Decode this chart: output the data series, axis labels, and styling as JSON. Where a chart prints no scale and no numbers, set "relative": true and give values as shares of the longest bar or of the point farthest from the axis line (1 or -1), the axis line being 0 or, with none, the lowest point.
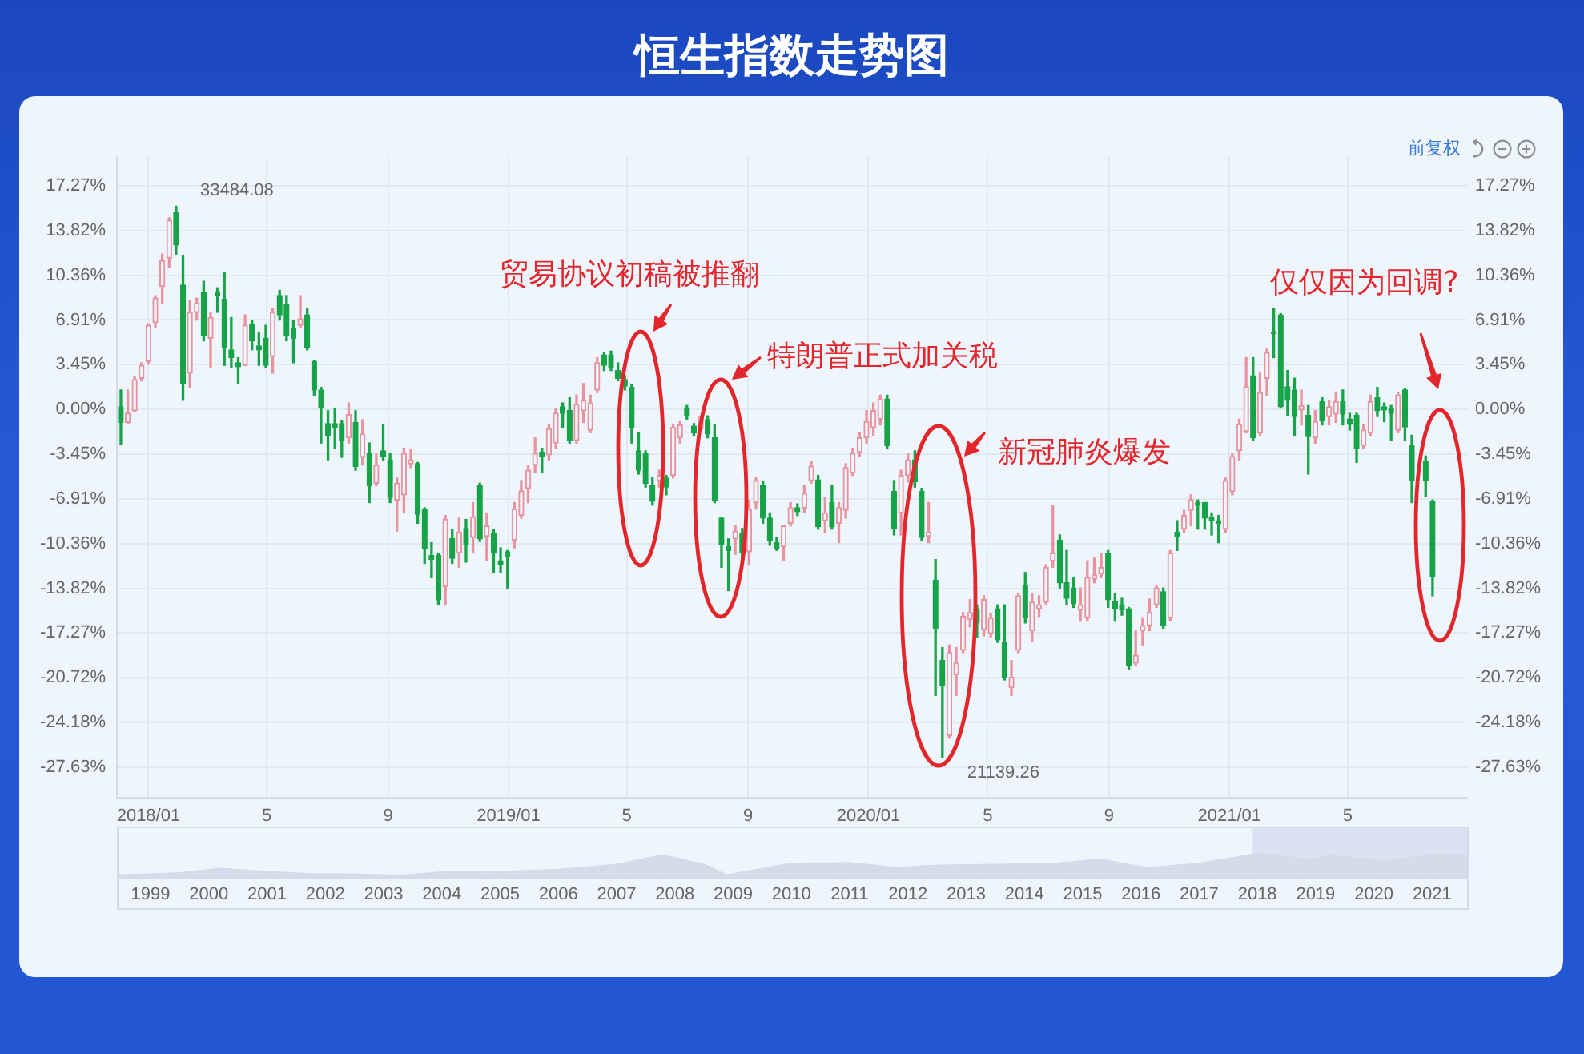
{
  "chart_data": [
    {
      "type": "candlestick",
      "title": "恒生指数走势图",
      "x": [
        "2017-12-04",
        "2017-12-11",
        "2017-12-18",
        "2017-12-25",
        "2018-01-01",
        "2018-01-08",
        "2018-01-15",
        "2018-01-22",
        "2018-01-29",
        "2018-02-05",
        "2018-02-12",
        "2018-02-19",
        "2018-02-26",
        "2018-03-05",
        "2018-03-12",
        "2018-03-19",
        "2018-03-26",
        "2018-04-02",
        "2018-04-09",
        "2018-04-16",
        "2018-04-23",
        "2018-04-30",
        "2018-05-07",
        "2018-05-14",
        "2018-05-21",
        "2018-05-28",
        "2018-06-04",
        "2018-06-11",
        "2018-06-18",
        "2018-06-25",
        "2018-07-02",
        "2018-07-09",
        "2018-07-16",
        "2018-07-23",
        "2018-07-30",
        "2018-08-06",
        "2018-08-13",
        "2018-08-20",
        "2018-08-27",
        "2018-09-03",
        "2018-09-10",
        "2018-09-17",
        "2018-09-24",
        "2018-10-01",
        "2018-10-08",
        "2018-10-15",
        "2018-10-22",
        "2018-10-29",
        "2018-11-05",
        "2018-11-12",
        "2018-11-19",
        "2018-11-26",
        "2018-12-03",
        "2018-12-10",
        "2018-12-17",
        "2018-12-24",
        "2018-12-31",
        "2019-01-07",
        "2019-01-14",
        "2019-01-21",
        "2019-01-28",
        "2019-02-04",
        "2019-02-11",
        "2019-02-18",
        "2019-02-25",
        "2019-03-04",
        "2019-03-11",
        "2019-03-18",
        "2019-03-25",
        "2019-04-01",
        "2019-04-08",
        "2019-04-15",
        "2019-04-22",
        "2019-04-29",
        "2019-05-06",
        "2019-05-13",
        "2019-05-20",
        "2019-05-27",
        "2019-06-03",
        "2019-06-10",
        "2019-06-17",
        "2019-06-24",
        "2019-07-01",
        "2019-07-08",
        "2019-07-15",
        "2019-07-22",
        "2019-07-29",
        "2019-08-05",
        "2019-08-12",
        "2019-08-19",
        "2019-08-26",
        "2019-09-02",
        "2019-09-09",
        "2019-09-16",
        "2019-09-23",
        "2019-09-30",
        "2019-10-07",
        "2019-10-14",
        "2019-10-21",
        "2019-10-28",
        "2019-11-04",
        "2019-11-11",
        "2019-11-18",
        "2019-11-25",
        "2019-12-02",
        "2019-12-09",
        "2019-12-16",
        "2019-12-23",
        "2019-12-30",
        "2020-01-06",
        "2020-01-13",
        "2020-01-20",
        "2020-01-27",
        "2020-02-03",
        "2020-02-10",
        "2020-02-17",
        "2020-02-24",
        "2020-03-02",
        "2020-03-09",
        "2020-03-16",
        "2020-03-23",
        "2020-03-30",
        "2020-04-06",
        "2020-04-13",
        "2020-04-20",
        "2020-04-27",
        "2020-05-04",
        "2020-05-11",
        "2020-05-18",
        "2020-05-25",
        "2020-06-01",
        "2020-06-08",
        "2020-06-15",
        "2020-06-22",
        "2020-06-29",
        "2020-07-06",
        "2020-07-13",
        "2020-07-20",
        "2020-07-27",
        "2020-08-03",
        "2020-08-10",
        "2020-08-17",
        "2020-08-24",
        "2020-08-31",
        "2020-09-07",
        "2020-09-14",
        "2020-09-21",
        "2020-09-28",
        "2020-10-05",
        "2020-10-12",
        "2020-10-19",
        "2020-10-26",
        "2020-11-02",
        "2020-11-09",
        "2020-11-16",
        "2020-11-23",
        "2020-11-30",
        "2020-12-07",
        "2020-12-14",
        "2020-12-21",
        "2020-12-28",
        "2021-01-04",
        "2021-01-11",
        "2021-01-18",
        "2021-01-25",
        "2021-02-01",
        "2021-02-08",
        "2021-02-15",
        "2021-02-22",
        "2021-03-01",
        "2021-03-08",
        "2021-03-15",
        "2021-03-22",
        "2021-03-29",
        "2021-04-05",
        "2021-04-12",
        "2021-04-19",
        "2021-04-26",
        "2021-05-03",
        "2021-05-10",
        "2021-05-17",
        "2021-05-24",
        "2021-05-31",
        "2021-06-07",
        "2021-06-14",
        "2021-06-21",
        "2021-06-28",
        "2021-07-05",
        "2021-07-19",
        "2021-07-26"
      ],
      "ohlc": [
        [
          0.2,
          1.5,
          -2.7,
          -1.0
        ],
        [
          -1.0,
          1.5,
          -1.1,
          -0.3
        ],
        [
          -0.1,
          2.5,
          -0.2,
          2.3
        ],
        [
          2.4,
          3.6,
          2.2,
          3.4
        ],
        [
          3.7,
          6.6,
          3.5,
          6.5
        ],
        [
          6.7,
          8.8,
          6.3,
          8.6
        ],
        [
          9.5,
          12.0,
          8.2,
          11.5
        ],
        [
          11.7,
          14.8,
          11.0,
          14.6
        ],
        [
          15.2,
          15.7,
          12.0,
          12.7
        ],
        [
          9.6,
          11.9,
          0.7,
          2.0
        ],
        [
          2.8,
          8.4,
          1.7,
          7.5
        ],
        [
          7.5,
          8.6,
          6.9,
          8.2
        ],
        [
          9.0,
          9.9,
          5.3,
          5.7
        ],
        [
          5.5,
          7.5,
          3.2,
          7.1
        ],
        [
          9.1,
          9.4,
          7.5,
          8.8
        ],
        [
          8.5,
          10.6,
          3.4,
          4.8
        ],
        [
          4.6,
          7.1,
          3.2,
          4.0
        ],
        [
          3.6,
          4.0,
          2.0,
          3.3
        ],
        [
          3.4,
          7.3,
          3.4,
          6.5
        ],
        [
          6.6,
          6.9,
          4.6,
          5.3
        ],
        [
          4.9,
          5.9,
          3.4,
          4.6
        ],
        [
          5.5,
          6.5,
          3.2,
          3.4
        ],
        [
          4.1,
          7.8,
          2.8,
          7.5
        ],
        [
          8.8,
          9.2,
          6.9,
          7.3
        ],
        [
          8.1,
          8.8,
          5.3,
          5.7
        ],
        [
          6.3,
          6.9,
          3.6,
          5.5
        ],
        [
          6.5,
          8.8,
          6.3,
          7.0
        ],
        [
          7.3,
          7.8,
          4.6,
          4.8
        ],
        [
          3.7,
          3.8,
          1.1,
          1.5
        ],
        [
          1.5,
          1.7,
          -2.6,
          0.1
        ],
        [
          -1.1,
          -0.1,
          -3.9,
          -2.0
        ],
        [
          -1.1,
          0.1,
          -3.0,
          -1.4
        ],
        [
          -1.1,
          -0.9,
          -3.7,
          -2.4
        ],
        [
          -2.2,
          0.5,
          -2.6,
          -0.4
        ],
        [
          -1.0,
          -0.1,
          -4.7,
          -4.4
        ],
        [
          -3.7,
          -0.8,
          -4.3,
          -1.9
        ],
        [
          -3.4,
          -2.6,
          -7.2,
          -5.9
        ],
        [
          -5.7,
          -3.4,
          -5.9,
          -4.3
        ],
        [
          -3.2,
          -1.2,
          -3.9,
          -3.6
        ],
        [
          -3.9,
          -3.4,
          -7.2,
          -6.8
        ],
        [
          -7.0,
          -5.3,
          -9.4,
          -5.7
        ],
        [
          -6.6,
          -3.0,
          -8.0,
          -3.4
        ],
        [
          -4.2,
          -3.1,
          -4.5,
          -3.9
        ],
        [
          -4.2,
          -4.1,
          -8.8,
          -8.1
        ],
        [
          -7.7,
          -7.6,
          -11.9,
          -10.8
        ],
        [
          -11.3,
          -10.3,
          -13.0,
          -11.6
        ],
        [
          -11.3,
          -11.1,
          -15.1,
          -14.7
        ],
        [
          -13.7,
          -8.2,
          -15.1,
          -8.5
        ],
        [
          -10.0,
          -9.3,
          -11.9,
          -11.5
        ],
        [
          -11.1,
          -8.4,
          -12.2,
          -9.5
        ],
        [
          -9.2,
          -8.5,
          -11.8,
          -10.4
        ],
        [
          -9.9,
          -7.2,
          -11.1,
          -8.3
        ],
        [
          -5.9,
          -5.7,
          -10.2,
          -10.0
        ],
        [
          -9.8,
          -8.0,
          -11.7,
          -9.0
        ],
        [
          -9.6,
          -9.3,
          -12.6,
          -11.1
        ],
        [
          -11.7,
          -10.7,
          -12.6,
          -12.0
        ],
        [
          -11.0,
          -10.9,
          -13.8,
          -11.4
        ],
        [
          -10.1,
          -7.2,
          -10.7,
          -7.7
        ],
        [
          -8.2,
          -5.5,
          -8.4,
          -6.3
        ],
        [
          -6.1,
          -4.3,
          -7.2,
          -4.7
        ],
        [
          -4.3,
          -2.2,
          -4.9,
          -3.4
        ],
        [
          -3.3,
          -3.0,
          -4.9,
          -3.6
        ],
        [
          -3.5,
          -1.2,
          -3.9,
          -1.5
        ],
        [
          -2.6,
          0.1,
          -3.0,
          -0.3
        ],
        [
          0.2,
          0.5,
          -1.4,
          -0.3
        ],
        [
          -0.1,
          0.9,
          -2.6,
          -2.4
        ],
        [
          -2.4,
          1.1,
          -2.6,
          0.4
        ],
        [
          -0.1,
          2.0,
          -1.0,
          0.7
        ],
        [
          -1.6,
          1.1,
          -1.8,
          0.5
        ],
        [
          1.5,
          4.0,
          1.3,
          3.6
        ],
        [
          4.2,
          4.4,
          3.0,
          3.4
        ],
        [
          4.2,
          4.5,
          3.0,
          3.2
        ],
        [
          3.0,
          3.6,
          2.2,
          2.4
        ],
        [
          2.3,
          2.6,
          1.5,
          1.8
        ],
        [
          1.7,
          1.9,
          -2.6,
          -1.4
        ],
        [
          -3.2,
          -1.8,
          -5.0,
          -4.7
        ],
        [
          -3.4,
          -3.2,
          -6.0,
          -5.7
        ],
        [
          -5.9,
          -5.3,
          -7.4,
          -7.1
        ],
        [
          -5.5,
          -4.7,
          -6.0,
          -5.1
        ],
        [
          -5.3,
          -5.1,
          -6.6,
          -6.0
        ],
        [
          -5.1,
          -1.2,
          -5.3,
          -1.4
        ],
        [
          -2.2,
          -0.95,
          -2.6,
          -1.2
        ],
        [
          0.1,
          0.3,
          -0.75,
          -0.45
        ],
        [
          -1.3,
          -1.1,
          -2.0,
          -1.8
        ],
        [
          -1.5,
          -0.5,
          -1.7,
          -0.6
        ],
        [
          -0.8,
          -0.5,
          -2.2,
          -1.9
        ],
        [
          -2.2,
          -1.2,
          -7.2,
          -7.0
        ],
        [
          -8.4,
          -8.4,
          -12.2,
          -10.4
        ],
        [
          -10.6,
          -10.0,
          -14.0,
          -10.9
        ],
        [
          -10.0,
          -9.0,
          -11.2,
          -9.4
        ],
        [
          -9.6,
          -9.2,
          -11.6,
          -11.1
        ],
        [
          -11.0,
          -7.0,
          -12.0,
          -7.7
        ],
        [
          -7.2,
          -5.3,
          -7.7,
          -5.5
        ],
        [
          -5.9,
          -5.6,
          -8.8,
          -8.4
        ],
        [
          -8.4,
          -8.0,
          -10.5,
          -10.1
        ],
        [
          -10.3,
          -9.9,
          -10.9,
          -10.8
        ],
        [
          -10.6,
          -9.0,
          -11.7,
          -9.0
        ],
        [
          -8.8,
          -7.2,
          -9.0,
          -7.6
        ],
        [
          -7.6,
          -7.3,
          -8.2,
          -7.9
        ],
        [
          -7.6,
          -5.9,
          -8.0,
          -6.5
        ],
        [
          -5.5,
          -4.0,
          -5.7,
          -4.4
        ],
        [
          -5.45,
          -5.1,
          -9.25,
          -9.05
        ],
        [
          -8.6,
          -6.8,
          -9.5,
          -8.0
        ],
        [
          -7.2,
          -5.9,
          -9.25,
          -9.05
        ],
        [
          -8.8,
          -7.2,
          -10.3,
          -7.6
        ],
        [
          -7.8,
          -4.2,
          -8.4,
          -4.5
        ],
        [
          -4.9,
          -3.0,
          -5.1,
          -3.4
        ],
        [
          -3.3,
          -1.8,
          -3.6,
          -2.2
        ],
        [
          -2.2,
          -0.1,
          -2.6,
          -0.95
        ],
        [
          -1.4,
          0.5,
          -2.0,
          -0.1
        ],
        [
          -0.75,
          1.1,
          -1.2,
          0.8
        ],
        [
          0.8,
          1.1,
          -3.0,
          -2.8
        ],
        [
          -6.35,
          -5.5,
          -9.7,
          -9.25
        ],
        [
          -8.0,
          -4.7,
          -9.7,
          -5.1
        ],
        [
          -5.1,
          -3.4,
          -5.6,
          -3.9
        ],
        [
          -3.9,
          -3.2,
          -6.0,
          -5.6
        ],
        [
          -6.35,
          -6.1,
          -10.1,
          -9.9
        ],
        [
          -9.8,
          -7.2,
          -10.3,
          -9.5
        ],
        [
          -13.2,
          -11.6,
          -22.1,
          -16.9
        ],
        [
          -19.4,
          -18.4,
          -26.9,
          -21.3
        ],
        [
          -25.2,
          -18.2,
          -25.4,
          -18.8
        ],
        [
          -20.5,
          -18.4,
          -22.1,
          -19.6
        ],
        [
          -18.6,
          -15.7,
          -18.8,
          -16.0
        ],
        [
          -16.2,
          -14.7,
          -16.8,
          -15.7
        ],
        [
          -15.4,
          -15.1,
          -17.6,
          -16.5
        ],
        [
          -17.0,
          -14.4,
          -17.5,
          -14.7
        ],
        [
          -17.3,
          -15.8,
          -17.6,
          -16.1
        ],
        [
          -15.4,
          -15.1,
          -18.0,
          -17.8
        ],
        [
          -18.0,
          -15.1,
          -20.9,
          -20.7
        ],
        [
          -21.5,
          -19.4,
          -22.1,
          -20.7
        ],
        [
          -18.6,
          -14.2,
          -18.8,
          -14.4
        ],
        [
          -13.6,
          -12.6,
          -16.5,
          -16.1
        ],
        [
          -17.1,
          -14.2,
          -17.9,
          -14.9
        ],
        [
          -15.4,
          -14.4,
          -16.0,
          -15.1
        ],
        [
          -14.9,
          -12.0,
          -15.1,
          -12.2
        ],
        [
          -11.7,
          -7.4,
          -12.2,
          -11.1
        ],
        [
          -10.1,
          -9.7,
          -13.8,
          -13.4
        ],
        [
          -13.4,
          -10.9,
          -15.1,
          -14.6
        ],
        [
          -13.8,
          -13.0,
          -15.3,
          -15.0
        ],
        [
          -15.5,
          -13.8,
          -16.3,
          -15.1
        ],
        [
          -16.1,
          -11.7,
          -16.3,
          -13.0
        ],
        [
          -13.1,
          -11.5,
          -13.4,
          -12.8
        ],
        [
          -12.7,
          -11.1,
          -13.0,
          -12.2
        ],
        [
          -11.1,
          -10.9,
          -15.3,
          -14.7
        ],
        [
          -14.85,
          -14.2,
          -16.3,
          -15.4
        ],
        [
          -15.1,
          -14.6,
          -15.9,
          -15.5
        ],
        [
          -15.4,
          -15.3,
          -20.1,
          -19.8
        ],
        [
          -19.6,
          -17.1,
          -19.8,
          -19.0
        ],
        [
          -17.1,
          -16.1,
          -18.2,
          -16.7
        ],
        [
          -16.7,
          -14.65,
          -17.1,
          -15.7
        ],
        [
          -15.1,
          -13.6,
          -15.3,
          -13.8
        ],
        [
          -14.1,
          -13.8,
          -16.9,
          -16.7
        ],
        [
          -16.1,
          -10.9,
          -16.3,
          -11.1
        ],
        [
          -9.5,
          -8.6,
          -10.9,
          -9.8
        ],
        [
          -9.25,
          -7.8,
          -9.5,
          -8.2
        ],
        [
          -7.8,
          -6.6,
          -9.0,
          -7.0
        ],
        [
          -7.2,
          -7.0,
          -9.25,
          -7.4
        ],
        [
          -7.2,
          -7.2,
          -9.25,
          -8.4
        ],
        [
          -8.3,
          -8.0,
          -9.7,
          -8.6
        ],
        [
          -8.6,
          -8.2,
          -10.3,
          -8.8
        ],
        [
          -9.25,
          -5.3,
          -9.5,
          -5.5
        ],
        [
          -6.35,
          -3.4,
          -6.6,
          -3.65
        ],
        [
          -3.2,
          -0.75,
          -3.9,
          -1.15
        ],
        [
          -1.7,
          4.0,
          -1.8,
          1.75
        ],
        [
          2.6,
          4.0,
          -2.4,
          -2.2
        ],
        [
          -1.8,
          2.8,
          -2.0,
          1.3
        ],
        [
          2.4,
          4.65,
          1.1,
          4.4
        ],
        [
          6.0,
          7.8,
          4.0,
          5.85
        ],
        [
          7.3,
          7.4,
          0.1,
          0.2
        ],
        [
          1.75,
          3.0,
          -0.5,
          0.7
        ],
        [
          1.5,
          2.4,
          -2.0,
          -0.55
        ],
        [
          -0.05,
          1.5,
          -1.2,
          0.3
        ],
        [
          -0.45,
          0.3,
          -5.0,
          -2.1
        ],
        [
          -2.2,
          -0.1,
          -2.6,
          -0.95
        ],
        [
          0.6,
          0.9,
          -1.2,
          -0.9
        ],
        [
          -0.55,
          0.7,
          -1.2,
          0.2
        ],
        [
          -0.35,
          1.35,
          -1.0,
          0.6
        ],
        [
          0.6,
          1.5,
          -1.2,
          -0.35
        ],
        [
          -0.75,
          -0.3,
          -1.6,
          -1.15
        ],
        [
          -0.45,
          -0.3,
          -4.1,
          -3.0
        ],
        [
          -2.8,
          -1.2,
          -3.0,
          -1.6
        ],
        [
          -1.8,
          1.1,
          -2.0,
          0.6
        ],
        [
          0.9,
          1.7,
          -0.55,
          -0.1
        ],
        [
          0.2,
          0.5,
          -0.95,
          -0.05
        ],
        [
          0.1,
          0.3,
          -2.4,
          -0.3
        ],
        [
          -1.6,
          1.3,
          -1.8,
          1.1
        ],
        [
          1.5,
          1.6,
          -2.4,
          -1.35
        ],
        [
          -2.8,
          -2.0,
          -7.2,
          -5.5
        ],
        [
          -4.0,
          -3.6,
          -6.7,
          -5.5
        ],
        [
          -7.1,
          -7.0,
          -14.4,
          -12.9
        ]
      ],
      "colors": [
        "#17a348",
        "#e8939d",
        "#e8939d",
        "#e8939d",
        "#e8939d",
        "#e8939d",
        "#e8939d",
        "#e8939d",
        "#17a348",
        "#17a348",
        "#e8939d",
        "#e8939d",
        "#17a348",
        "#e8939d",
        "#17a348",
        "#17a348",
        "#17a348",
        "#17a348",
        "#e8939d",
        "#17a348",
        "#17a348",
        "#17a348",
        "#e8939d",
        "#17a348",
        "#17a348",
        "#17a348",
        "#e8939d",
        "#17a348",
        "#17a348",
        "#17a348",
        "#17a348",
        "#17a348",
        "#17a348",
        "#e8939d",
        "#17a348",
        "#e8939d",
        "#17a348",
        "#e8939d",
        "#17a348",
        "#17a348",
        "#e8939d",
        "#e8939d",
        "#e8939d",
        "#17a348",
        "#17a348",
        "#17a348",
        "#17a348",
        "#e8939d",
        "#17a348",
        "#e8939d",
        "#17a348",
        "#e8939d",
        "#17a348",
        "#e8939d",
        "#17a348",
        "#17a348",
        "#17a348",
        "#e8939d",
        "#e8939d",
        "#e8939d",
        "#e8939d",
        "#17a348",
        "#e8939d",
        "#e8939d",
        "#17a348",
        "#17a348",
        "#e8939d",
        "#e8939d",
        "#e8939d",
        "#e8939d",
        "#17a348",
        "#17a348",
        "#17a348",
        "#17a348",
        "#17a348",
        "#17a348",
        "#17a348",
        "#17a348",
        "#e8939d",
        "#17a348",
        "#e8939d",
        "#e8939d",
        "#17a348",
        "#17a348",
        "#e8939d",
        "#17a348",
        "#17a348",
        "#17a348",
        "#17a348",
        "#e8939d",
        "#17a348",
        "#e8939d",
        "#e8939d",
        "#17a348",
        "#17a348",
        "#17a348",
        "#e8939d",
        "#e8939d",
        "#17a348",
        "#e8939d",
        "#e8939d",
        "#17a348",
        "#e8939d",
        "#17a348",
        "#e8939d",
        "#e8939d",
        "#e8939d",
        "#e8939d",
        "#e8939d",
        "#e8939d",
        "#e8939d",
        "#17a348",
        "#17a348",
        "#e8939d",
        "#e8939d",
        "#17a348",
        "#17a348",
        "#e8939d",
        "#17a348",
        "#17a348",
        "#e8939d",
        "#e8939d",
        "#e8939d",
        "#e8939d",
        "#17a348",
        "#e8939d",
        "#e8939d",
        "#17a348",
        "#17a348",
        "#e8939d",
        "#e8939d",
        "#17a348",
        "#e8939d",
        "#e8939d",
        "#e8939d",
        "#e8939d",
        "#17a348",
        "#17a348",
        "#17a348",
        "#e8939d",
        "#e8939d",
        "#e8939d",
        "#e8939d",
        "#17a348",
        "#17a348",
        "#17a348",
        "#17a348",
        "#e8939d",
        "#e8939d",
        "#e8939d",
        "#e8939d",
        "#17a348",
        "#e8939d",
        "#17a348",
        "#e8939d",
        "#e8939d",
        "#17a348",
        "#17a348",
        "#17a348",
        "#17a348",
        "#e8939d",
        "#e8939d",
        "#e8939d",
        "#e8939d",
        "#17a348",
        "#e8939d",
        "#e8939d",
        "#17a348",
        "#17a348",
        "#17a348",
        "#17a348",
        "#e8939d",
        "#17a348",
        "#e8939d",
        "#17a348",
        "#e8939d",
        "#e8939d",
        "#17a348",
        "#17a348",
        "#17a348",
        "#e8939d",
        "#e8939d",
        "#17a348",
        "#17a348",
        "#17a348",
        "#e8939d",
        "#17a348",
        "#17a348",
        "#17a348",
        "#17a348"
      ],
      "xlim": [
        "2017-11-30",
        "2021-08-30"
      ],
      "xticks": [
        {
          "value": "2018-01",
          "label": "2018/01"
        },
        {
          "value": "2018-05",
          "label": "5"
        },
        {
          "value": "2018-09",
          "label": "9"
        },
        {
          "value": "2019-01",
          "label": "2019/01"
        },
        {
          "value": "2019-05",
          "label": "5"
        },
        {
          "value": "2019-09",
          "label": "9"
        },
        {
          "value": "2020-01",
          "label": "2020/01"
        },
        {
          "value": "2020-05",
          "label": "5"
        },
        {
          "value": "2020-09",
          "label": "9"
        },
        {
          "value": "2021-01",
          "label": "2021/01"
        },
        {
          "value": "2021-05",
          "label": "5"
        }
      ],
      "ylim": [
        -30,
        19.5
      ],
      "yticks": [
        {
          "value": 17.27,
          "label": "17.27%"
        },
        {
          "value": 13.82,
          "label": "13.82%"
        },
        {
          "value": 10.36,
          "label": "10.36%"
        },
        {
          "value": 6.91,
          "label": "6.91%"
        },
        {
          "value": 3.45,
          "label": "3.45%"
        },
        {
          "value": 0,
          "label": "0.00%"
        },
        {
          "value": -3.45,
          "label": "-3.45%"
        },
        {
          "value": -6.91,
          "label": "-6.91%"
        },
        {
          "value": -10.36,
          "label": "-10.36%"
        },
        {
          "value": -13.82,
          "label": "-13.82%"
        },
        {
          "value": -17.27,
          "label": "-17.27%"
        },
        {
          "value": -20.72,
          "label": "-20.72%"
        },
        {
          "value": -24.18,
          "label": "-24.18%"
        },
        {
          "value": -27.63,
          "label": "-27.63%"
        }
      ],
      "y2lim": [
        -30,
        19.5
      ],
      "y2ticks": [
        {
          "value": 17.27,
          "label": "17.27%"
        },
        {
          "value": 13.82,
          "label": "13.82%"
        },
        {
          "value": 10.36,
          "label": "10.36%"
        },
        {
          "value": 6.91,
          "label": "6.91%"
        },
        {
          "value": 3.45,
          "label": "3.45%"
        },
        {
          "value": 0,
          "label": "0.00%"
        },
        {
          "value": -3.45,
          "label": "-3.45%"
        },
        {
          "value": -6.91,
          "label": "-6.91%"
        },
        {
          "value": -10.36,
          "label": "-10.36%"
        },
        {
          "value": -13.82,
          "label": "-13.82%"
        },
        {
          "value": -17.27,
          "label": "-17.27%"
        },
        {
          "value": -20.72,
          "label": "-20.72%"
        },
        {
          "value": -24.18,
          "label": "-24.18%"
        },
        {
          "value": -27.63,
          "label": "-27.63%"
        }
      ],
      "grid": true,
      "annotations": [
        "前复权",
        {
          "text": "33484.08",
          "x": "2018-01-29",
          "y": 15.7
        },
        {
          "text": "21139.26",
          "x": "2020-03-16",
          "y": -26.9
        },
        "贸易协议初稿被推翻",
        "特朗普正式加关税",
        "新冠肺炎爆发",
        "仅仅因为回调?"
      ]
    },
    {
      "type": "area",
      "relative": true,
      "color": "#d3dce8",
      "x": [
        1998.45,
        1999,
        1999.5,
        2000.2,
        2000.8,
        2001.7,
        2002.5,
        2003.3,
        2004,
        2005,
        2006,
        2007,
        2007.8,
        2008.5,
        2008.9,
        2009.5,
        2010,
        2011,
        2011.8,
        2012.5,
        2013.5,
        2014.5,
        2015.3,
        2016.1,
        2017,
        2018,
        2018.9,
        2019.3,
        2020.2,
        2021.1,
        2021.6
      ],
      "values": [
        0.17,
        0.2,
        0.25,
        0.42,
        0.33,
        0.22,
        0.2,
        0.15,
        0.28,
        0.3,
        0.38,
        0.58,
        0.95,
        0.58,
        0.17,
        0.42,
        0.62,
        0.65,
        0.45,
        0.55,
        0.58,
        0.62,
        0.78,
        0.45,
        0.62,
        1,
        0.78,
        0.92,
        0.72,
        0.98,
        0.92
      ],
      "xlim": [
        1998.45,
        2021.6
      ],
      "xticks": [
        1999,
        2000,
        2001,
        2002,
        2003,
        2004,
        2005,
        2006,
        2007,
        2008,
        2009,
        2010,
        2011,
        2012,
        2013,
        2014,
        2015,
        2016,
        2017,
        2018,
        2019,
        2020,
        2021
      ],
      "bands": [
        {
          "axis": "x",
          "from": 2017.92,
          "to": 2021.6
        }
      ]
    }
  ]
}
